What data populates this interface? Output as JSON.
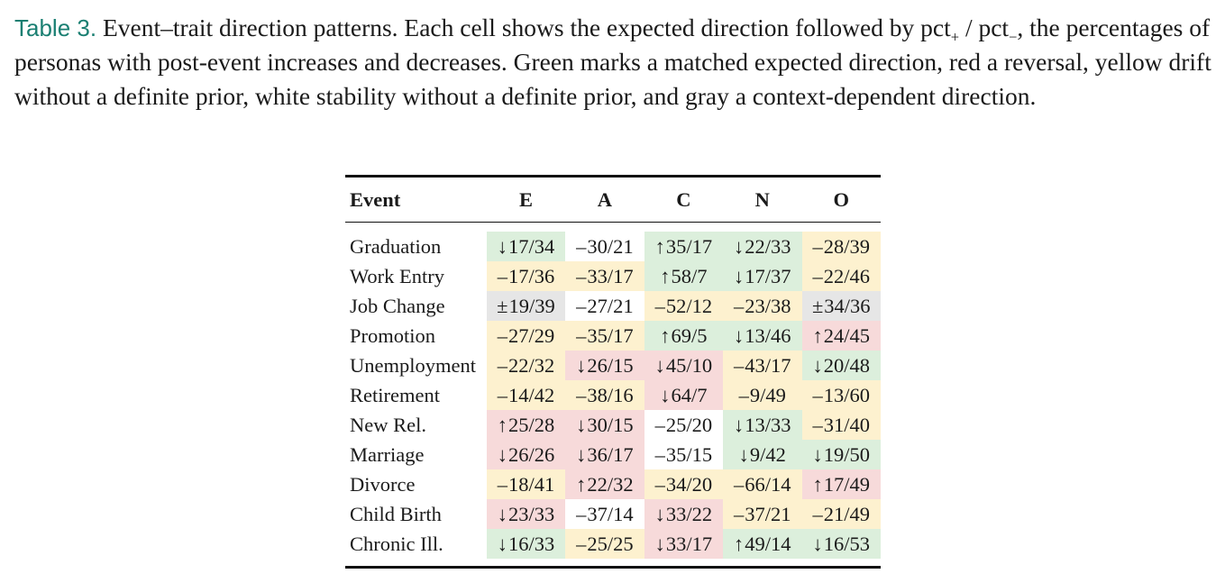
{
  "caption": {
    "label": "Table 3.",
    "text_before": " Event–trait direction patterns. Each cell shows the expected direction followed by pct",
    "sub_plus": "+",
    "text_middle": " / pct",
    "sub_minus": "−",
    "text_after": ", the percentages of personas with post-event increases and decreases. Green marks a matched expected direction, red a reversal, yellow drift without a definite prior, white stability without a definite prior, and gray a context-dependent direction."
  },
  "colors": {
    "green": "#dcefdc",
    "red": "#f7dada",
    "yellow": "#fdf1cf",
    "white": "#ffffff",
    "gray": "#e6e6e6",
    "label_teal": "#1a7f72"
  },
  "table": {
    "headers": [
      "Event",
      "E",
      "A",
      "C",
      "N",
      "O"
    ],
    "rows": [
      {
        "event": "Graduation",
        "cells": [
          {
            "dir": "↓",
            "val": "17/34",
            "color": "green"
          },
          {
            "dir": "–",
            "val": "30/21",
            "color": "white"
          },
          {
            "dir": "↑",
            "val": "35/17",
            "color": "green"
          },
          {
            "dir": "↓",
            "val": "22/33",
            "color": "green"
          },
          {
            "dir": "–",
            "val": "28/39",
            "color": "yellow"
          }
        ]
      },
      {
        "event": "Work Entry",
        "cells": [
          {
            "dir": "–",
            "val": "17/36",
            "color": "yellow"
          },
          {
            "dir": "–",
            "val": "33/17",
            "color": "yellow"
          },
          {
            "dir": "↑",
            "val": "58/7",
            "color": "green"
          },
          {
            "dir": "↓",
            "val": "17/37",
            "color": "green"
          },
          {
            "dir": "–",
            "val": "22/46",
            "color": "yellow"
          }
        ]
      },
      {
        "event": "Job Change",
        "cells": [
          {
            "dir": "±",
            "val": "19/39",
            "color": "gray"
          },
          {
            "dir": "–",
            "val": "27/21",
            "color": "white"
          },
          {
            "dir": "–",
            "val": "52/12",
            "color": "yellow"
          },
          {
            "dir": "–",
            "val": "23/38",
            "color": "yellow"
          },
          {
            "dir": "±",
            "val": "34/36",
            "color": "gray"
          }
        ]
      },
      {
        "event": "Promotion",
        "cells": [
          {
            "dir": "–",
            "val": "27/29",
            "color": "yellow"
          },
          {
            "dir": "–",
            "val": "35/17",
            "color": "yellow"
          },
          {
            "dir": "↑",
            "val": "69/5",
            "color": "green"
          },
          {
            "dir": "↓",
            "val": "13/46",
            "color": "green"
          },
          {
            "dir": "↑",
            "val": "24/45",
            "color": "red"
          }
        ]
      },
      {
        "event": "Unemployment",
        "cells": [
          {
            "dir": "–",
            "val": "22/32",
            "color": "yellow"
          },
          {
            "dir": "↓",
            "val": "26/15",
            "color": "red"
          },
          {
            "dir": "↓",
            "val": "45/10",
            "color": "red"
          },
          {
            "dir": "–",
            "val": "43/17",
            "color": "yellow"
          },
          {
            "dir": "↓",
            "val": "20/48",
            "color": "green"
          }
        ]
      },
      {
        "event": "Retirement",
        "cells": [
          {
            "dir": "–",
            "val": "14/42",
            "color": "yellow"
          },
          {
            "dir": "–",
            "val": "38/16",
            "color": "yellow"
          },
          {
            "dir": "↓",
            "val": "64/7",
            "color": "red"
          },
          {
            "dir": "–",
            "val": "9/49",
            "color": "yellow"
          },
          {
            "dir": "–",
            "val": "13/60",
            "color": "yellow"
          }
        ]
      },
      {
        "event": "New Rel.",
        "cells": [
          {
            "dir": "↑",
            "val": "25/28",
            "color": "red"
          },
          {
            "dir": "↓",
            "val": "30/15",
            "color": "red"
          },
          {
            "dir": "–",
            "val": "25/20",
            "color": "white"
          },
          {
            "dir": "↓",
            "val": "13/33",
            "color": "green"
          },
          {
            "dir": "–",
            "val": "31/40",
            "color": "yellow"
          }
        ]
      },
      {
        "event": "Marriage",
        "cells": [
          {
            "dir": "↓",
            "val": "26/26",
            "color": "red"
          },
          {
            "dir": "↓",
            "val": "36/17",
            "color": "red"
          },
          {
            "dir": "–",
            "val": "35/15",
            "color": "white"
          },
          {
            "dir": "↓",
            "val": "9/42",
            "color": "green"
          },
          {
            "dir": "↓",
            "val": "19/50",
            "color": "green"
          }
        ]
      },
      {
        "event": "Divorce",
        "cells": [
          {
            "dir": "–",
            "val": "18/41",
            "color": "yellow"
          },
          {
            "dir": "↑",
            "val": "22/32",
            "color": "red"
          },
          {
            "dir": "–",
            "val": "34/20",
            "color": "yellow"
          },
          {
            "dir": "–",
            "val": "66/14",
            "color": "yellow"
          },
          {
            "dir": "↑",
            "val": "17/49",
            "color": "red"
          }
        ]
      },
      {
        "event": "Child Birth",
        "cells": [
          {
            "dir": "↓",
            "val": "23/33",
            "color": "red"
          },
          {
            "dir": "–",
            "val": "37/14",
            "color": "white"
          },
          {
            "dir": "↓",
            "val": "33/22",
            "color": "red"
          },
          {
            "dir": "–",
            "val": "37/21",
            "color": "yellow"
          },
          {
            "dir": "–",
            "val": "21/49",
            "color": "yellow"
          }
        ]
      },
      {
        "event": "Chronic Ill.",
        "cells": [
          {
            "dir": "↓",
            "val": "16/33",
            "color": "green"
          },
          {
            "dir": "–",
            "val": "25/25",
            "color": "yellow"
          },
          {
            "dir": "↓",
            "val": "33/17",
            "color": "red"
          },
          {
            "dir": "↑",
            "val": "49/14",
            "color": "green"
          },
          {
            "dir": "↓",
            "val": "16/53",
            "color": "green"
          }
        ]
      }
    ]
  }
}
